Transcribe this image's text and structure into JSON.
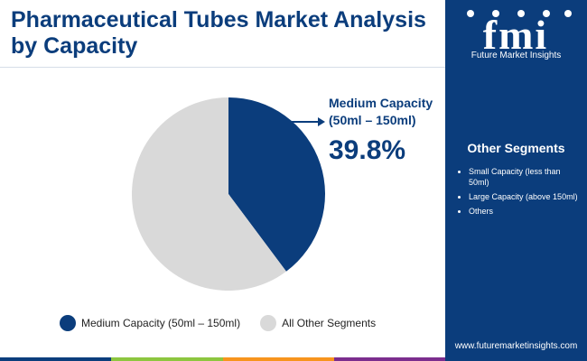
{
  "title": "Pharmaceutical Tubes Market Analysis by Capacity",
  "brand": {
    "logo_letters": "fmi",
    "name": "Future Market Insights",
    "website": "www.futuremarketinsights.com"
  },
  "callout": {
    "label": "Medium Capacity (50ml – 150ml)",
    "value": "39.8%"
  },
  "other_segments": {
    "title": "Other Segments",
    "items": [
      "Small Capacity (less than 50ml)",
      "Large Capacity (above 150ml)",
      "Others"
    ]
  },
  "colors": {
    "primary": "#0b3d7c",
    "secondary": "#d9d9d9",
    "footer_stripes": [
      "#0b3d7c",
      "#8dc63f",
      "#f7941d",
      "#7b2d8e"
    ]
  },
  "chart_data": {
    "type": "pie",
    "slices": [
      {
        "label": "Medium Capacity (50ml – 150ml)",
        "value": 39.8,
        "color": "#0b3d7c"
      },
      {
        "label": "All Other Segments",
        "value": 60.2,
        "color": "#d9d9d9"
      }
    ],
    "start_angle": "12 o'clock, clockwise",
    "legend_position": "bottom"
  }
}
